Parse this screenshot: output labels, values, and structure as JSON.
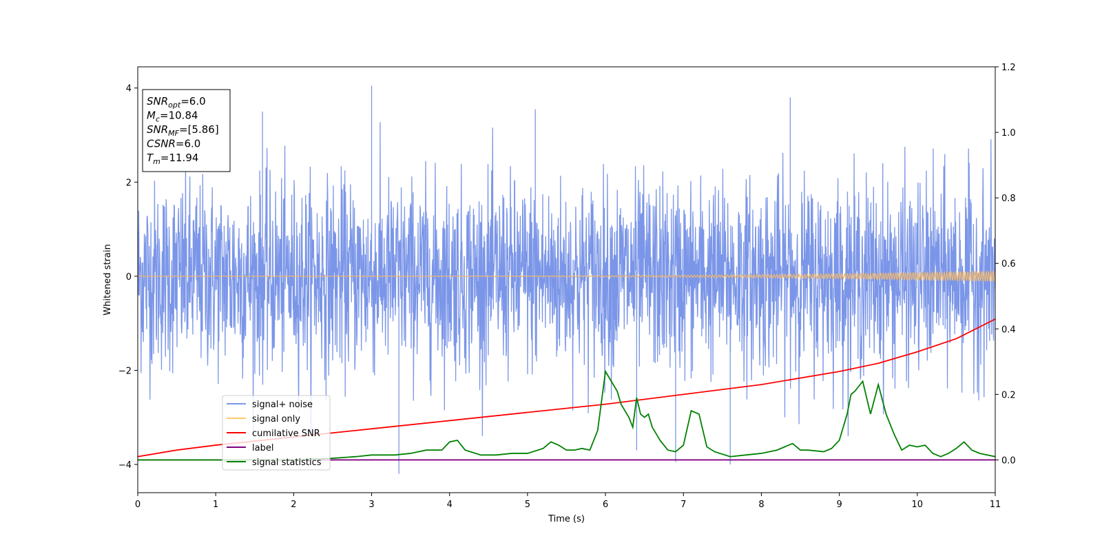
{
  "chart_data": {
    "type": "line",
    "title": "",
    "xlabel": "Time (s)",
    "ylabel": "Whitened strain",
    "xlim": [
      0,
      11
    ],
    "ylim": [
      -4.6,
      4.45
    ],
    "ylim_right": [
      -0.1,
      1.2
    ],
    "x_ticks": [
      "0",
      "1",
      "2",
      "3",
      "4",
      "5",
      "6",
      "7",
      "8",
      "9",
      "10",
      "11"
    ],
    "y_ticks": [
      "4",
      "2",
      "0",
      "−2",
      "−4"
    ],
    "y_ticks_right": [
      "1.2",
      "1.0",
      "0.8",
      "0.6",
      "0.4",
      "0.2",
      "0.0"
    ],
    "grid": false,
    "legend_placement": "lower-left",
    "legend": [
      {
        "label": "signal+ noise",
        "color": "#7b96e8"
      },
      {
        "label": "signal only",
        "color": "#ffc966"
      },
      {
        "label": "cumilative SNR",
        "color": "#ff0000"
      },
      {
        "label": "label",
        "color": "#800080"
      },
      {
        "label": "signal statistics",
        "color": "#008000"
      }
    ],
    "annotation": {
      "lines": [
        {
          "sym": "SNR",
          "sub": "opt",
          "value": "=6.0"
        },
        {
          "sym": "M",
          "sub": "c",
          "value": "=10.84"
        },
        {
          "sym": "SNR",
          "sub": "MF",
          "value": "=[5.86]"
        },
        {
          "sym": "CSNR",
          "sub": "",
          "value": "=6.0"
        },
        {
          "sym": "T",
          "sub": "m",
          "value": "=11.94"
        }
      ]
    },
    "series": [
      {
        "name": "signal+ noise",
        "axis": "left",
        "color": "#7b96e8",
        "kind": "noise",
        "std": 1.0,
        "spikes": [
          [
            3.0,
            4.05
          ],
          [
            3.35,
            -4.2
          ],
          [
            1.6,
            3.5
          ],
          [
            6.4,
            -3.7
          ],
          [
            8.37,
            3.8
          ],
          [
            7.6,
            -4.0
          ],
          [
            6.9,
            -3.95
          ],
          [
            5.1,
            3.55
          ]
        ]
      },
      {
        "name": "signal only",
        "axis": "left",
        "color": "#f0b870",
        "kind": "chirp",
        "amp_start": 0.005,
        "amp_end": 0.11
      },
      {
        "name": "cumilative SNR",
        "axis": "right",
        "color": "#ff0000",
        "x": [
          0,
          0.5,
          1,
          2,
          3,
          4,
          5,
          6,
          7,
          8,
          9,
          9.5,
          10,
          10.5,
          11
        ],
        "y": [
          0.01,
          0.03,
          0.045,
          0.07,
          0.095,
          0.12,
          0.145,
          0.17,
          0.2,
          0.23,
          0.27,
          0.295,
          0.33,
          0.37,
          0.43
        ]
      },
      {
        "name": "label",
        "axis": "right",
        "color": "#800080",
        "x": [
          0,
          11
        ],
        "y": [
          0,
          0
        ]
      },
      {
        "name": "signal statistics",
        "axis": "right",
        "color": "#008000",
        "x": [
          0,
          1,
          2,
          2.5,
          2.8,
          3.0,
          3.3,
          3.5,
          3.6,
          3.7,
          3.8,
          3.9,
          4.0,
          4.1,
          4.2,
          4.4,
          4.6,
          4.8,
          5.0,
          5.2,
          5.3,
          5.4,
          5.5,
          5.6,
          5.7,
          5.8,
          5.9,
          6.0,
          6.1,
          6.15,
          6.2,
          6.3,
          6.35,
          6.4,
          6.45,
          6.5,
          6.55,
          6.6,
          6.7,
          6.8,
          6.9,
          7.0,
          7.1,
          7.2,
          7.3,
          7.4,
          7.6,
          7.8,
          8.0,
          8.2,
          8.4,
          8.5,
          8.6,
          8.8,
          8.9,
          9.0,
          9.1,
          9.15,
          9.2,
          9.3,
          9.4,
          9.5,
          9.6,
          9.7,
          9.8,
          9.9,
          10.0,
          10.1,
          10.2,
          10.3,
          10.4,
          10.5,
          10.6,
          10.7,
          10.8,
          11.0
        ],
        "y": [
          0.0,
          0.0,
          0.0,
          0.005,
          0.01,
          0.015,
          0.015,
          0.02,
          0.025,
          0.03,
          0.03,
          0.03,
          0.055,
          0.06,
          0.03,
          0.015,
          0.015,
          0.02,
          0.02,
          0.035,
          0.055,
          0.045,
          0.03,
          0.03,
          0.035,
          0.03,
          0.09,
          0.27,
          0.23,
          0.21,
          0.17,
          0.13,
          0.1,
          0.19,
          0.14,
          0.13,
          0.14,
          0.1,
          0.06,
          0.03,
          0.025,
          0.045,
          0.15,
          0.14,
          0.04,
          0.025,
          0.01,
          0.015,
          0.02,
          0.03,
          0.05,
          0.03,
          0.03,
          0.025,
          0.035,
          0.06,
          0.14,
          0.2,
          0.21,
          0.24,
          0.14,
          0.23,
          0.14,
          0.08,
          0.03,
          0.045,
          0.04,
          0.045,
          0.02,
          0.01,
          0.02,
          0.035,
          0.055,
          0.03,
          0.02,
          0.01
        ]
      }
    ]
  }
}
